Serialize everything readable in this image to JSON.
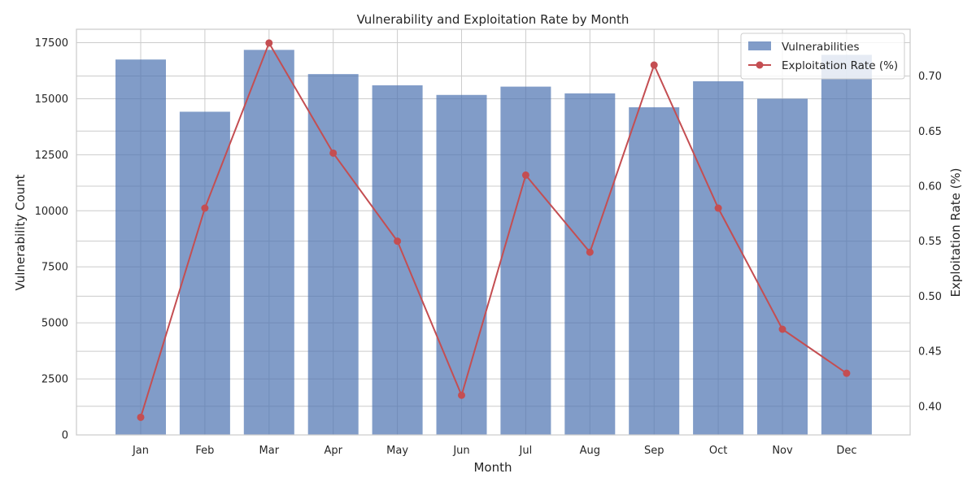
{
  "chart_data": {
    "type": "bar",
    "title": "Vulnerability and Exploitation Rate by Month",
    "xlabel": "Month",
    "ylabel": "Vulnerability Count",
    "y2label": "Exploitation Rate (%)",
    "categories": [
      "Jan",
      "Feb",
      "Mar",
      "Apr",
      "May",
      "Jun",
      "Jul",
      "Aug",
      "Sep",
      "Oct",
      "Nov",
      "Dec"
    ],
    "series": [
      {
        "name": "Vulnerabilities",
        "type": "bar",
        "axis": "left",
        "color": "#4c72b0",
        "values": [
          16750,
          14420,
          17180,
          16100,
          15600,
          15170,
          15540,
          15240,
          14620,
          15780,
          15000,
          16960
        ]
      },
      {
        "name": "Exploitation Rate (%)",
        "type": "line",
        "axis": "right",
        "color": "#c44e52",
        "values": [
          0.39,
          0.58,
          0.73,
          0.63,
          0.55,
          0.41,
          0.61,
          0.54,
          0.71,
          0.58,
          0.47,
          0.43
        ]
      }
    ],
    "ylim": [
      0,
      18100
    ],
    "y2lim": [
      0.374,
      0.7425
    ],
    "yticks": [
      "0",
      "2500",
      "5000",
      "7500",
      "10000",
      "12500",
      "15000",
      "17500"
    ],
    "yticks_values": [
      0,
      2500,
      5000,
      7500,
      10000,
      12500,
      15000,
      17500
    ],
    "y2ticks": [
      "0.40",
      "0.45",
      "0.50",
      "0.55",
      "0.60",
      "0.65",
      "0.70"
    ],
    "y2ticks_values": [
      0.4,
      0.45,
      0.5,
      0.55,
      0.6,
      0.65,
      0.7
    ],
    "grid": true,
    "legend_position": "top-right"
  }
}
